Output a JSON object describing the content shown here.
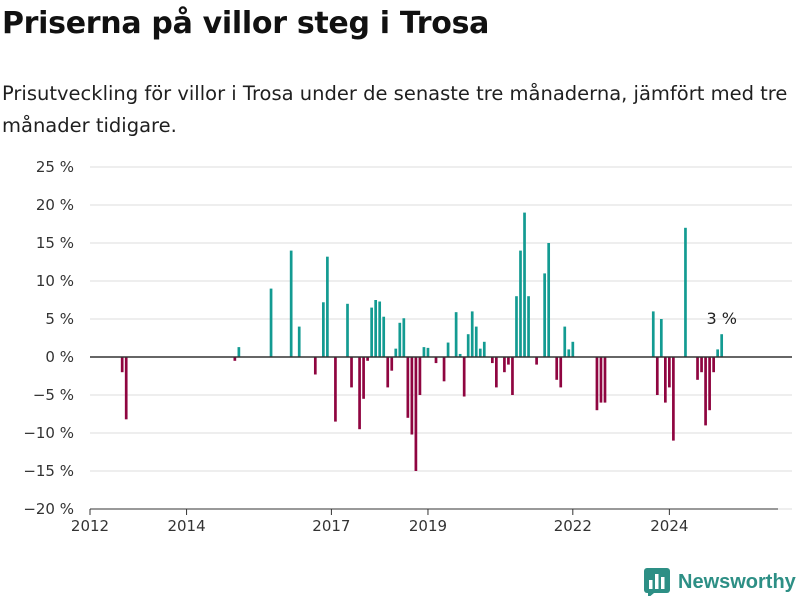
{
  "title": "Priserna på villor steg i Trosa",
  "subtitle": "Prisutveckling för villor i Trosa under de senaste tre månaderna, jämfört med tre månader tidigare.",
  "brand": {
    "name": "Newsworthy",
    "icon": "bar-chart-logo-icon"
  },
  "colors": {
    "positive": "#139b92",
    "negative": "#8f0540",
    "zero_line": "#333333",
    "grid": "#dddddd",
    "brand": "#2d8f85"
  },
  "chart_data": {
    "type": "bar",
    "x_unit": "month",
    "ylim": [
      -20,
      25
    ],
    "y_ticks": [
      -20,
      -15,
      -10,
      -5,
      0,
      5,
      10,
      15,
      20,
      25
    ],
    "y_tick_labels": [
      "−20 %",
      "−15 %",
      "−10 %",
      "−5 %",
      "0 %",
      "5 %",
      "10 %",
      "15 %",
      "20 %",
      "25 %"
    ],
    "x_ticks": [
      "2012-01",
      "2014-01",
      "2017-01",
      "2019-01",
      "2022-01",
      "2024-01"
    ],
    "x_tick_labels": [
      "2012",
      "2014",
      "2017",
      "2019",
      "2022",
      "2024"
    ],
    "grid": true,
    "annotation": {
      "x": "2025-02",
      "y": 3,
      "text": "3 %"
    },
    "points": [
      {
        "x": "2012-09",
        "y": -2
      },
      {
        "x": "2012-10",
        "y": -8.2
      },
      {
        "x": "2015-01",
        "y": -0.5
      },
      {
        "x": "2015-02",
        "y": 1.3
      },
      {
        "x": "2015-10",
        "y": 9
      },
      {
        "x": "2016-03",
        "y": 14
      },
      {
        "x": "2016-05",
        "y": 4
      },
      {
        "x": "2016-09",
        "y": -2.3
      },
      {
        "x": "2016-11",
        "y": 7.2
      },
      {
        "x": "2016-12",
        "y": 13.2
      },
      {
        "x": "2017-02",
        "y": -8.5
      },
      {
        "x": "2017-05",
        "y": 7
      },
      {
        "x": "2017-06",
        "y": -4
      },
      {
        "x": "2017-08",
        "y": -9.5
      },
      {
        "x": "2017-09",
        "y": -5.5
      },
      {
        "x": "2017-10",
        "y": -0.5
      },
      {
        "x": "2017-11",
        "y": 6.5
      },
      {
        "x": "2017-12",
        "y": 7.5
      },
      {
        "x": "2018-01",
        "y": 7.3
      },
      {
        "x": "2018-02",
        "y": 5.3
      },
      {
        "x": "2018-03",
        "y": -4
      },
      {
        "x": "2018-04",
        "y": -1.8
      },
      {
        "x": "2018-05",
        "y": 1.1
      },
      {
        "x": "2018-06",
        "y": 4.5
      },
      {
        "x": "2018-07",
        "y": 5.1
      },
      {
        "x": "2018-08",
        "y": -8
      },
      {
        "x": "2018-09",
        "y": -10.2
      },
      {
        "x": "2018-10",
        "y": -15
      },
      {
        "x": "2018-11",
        "y": -5
      },
      {
        "x": "2018-12",
        "y": 1.3
      },
      {
        "x": "2019-01",
        "y": 1.2
      },
      {
        "x": "2019-03",
        "y": -0.8
      },
      {
        "x": "2019-05",
        "y": -3.2
      },
      {
        "x": "2019-06",
        "y": 1.9
      },
      {
        "x": "2019-08",
        "y": 5.9
      },
      {
        "x": "2019-09",
        "y": 0.4
      },
      {
        "x": "2019-10",
        "y": -5.2
      },
      {
        "x": "2019-11",
        "y": 3
      },
      {
        "x": "2019-12",
        "y": 6
      },
      {
        "x": "2020-01",
        "y": 4
      },
      {
        "x": "2020-02",
        "y": 1.1
      },
      {
        "x": "2020-03",
        "y": 2
      },
      {
        "x": "2020-05",
        "y": -0.8
      },
      {
        "x": "2020-06",
        "y": -4
      },
      {
        "x": "2020-08",
        "y": -2
      },
      {
        "x": "2020-09",
        "y": -1
      },
      {
        "x": "2020-10",
        "y": -5
      },
      {
        "x": "2020-11",
        "y": 8
      },
      {
        "x": "2020-12",
        "y": 14
      },
      {
        "x": "2021-01",
        "y": 19
      },
      {
        "x": "2021-02",
        "y": 8
      },
      {
        "x": "2021-04",
        "y": -1
      },
      {
        "x": "2021-06",
        "y": 11
      },
      {
        "x": "2021-07",
        "y": 15
      },
      {
        "x": "2021-09",
        "y": -3
      },
      {
        "x": "2021-10",
        "y": -4
      },
      {
        "x": "2021-11",
        "y": 4
      },
      {
        "x": "2021-12",
        "y": 1
      },
      {
        "x": "2022-01",
        "y": 2
      },
      {
        "x": "2022-07",
        "y": -7
      },
      {
        "x": "2022-08",
        "y": -6
      },
      {
        "x": "2022-09",
        "y": -6
      },
      {
        "x": "2023-09",
        "y": 6
      },
      {
        "x": "2023-10",
        "y": -5
      },
      {
        "x": "2023-11",
        "y": 5
      },
      {
        "x": "2023-12",
        "y": -6
      },
      {
        "x": "2024-01",
        "y": -4
      },
      {
        "x": "2024-02",
        "y": -11
      },
      {
        "x": "2024-05",
        "y": 17
      },
      {
        "x": "2024-08",
        "y": -3
      },
      {
        "x": "2024-09",
        "y": -2
      },
      {
        "x": "2024-10",
        "y": -9
      },
      {
        "x": "2024-11",
        "y": -7
      },
      {
        "x": "2024-12",
        "y": -2
      },
      {
        "x": "2025-01",
        "y": 1
      },
      {
        "x": "2025-02",
        "y": 3
      }
    ]
  }
}
